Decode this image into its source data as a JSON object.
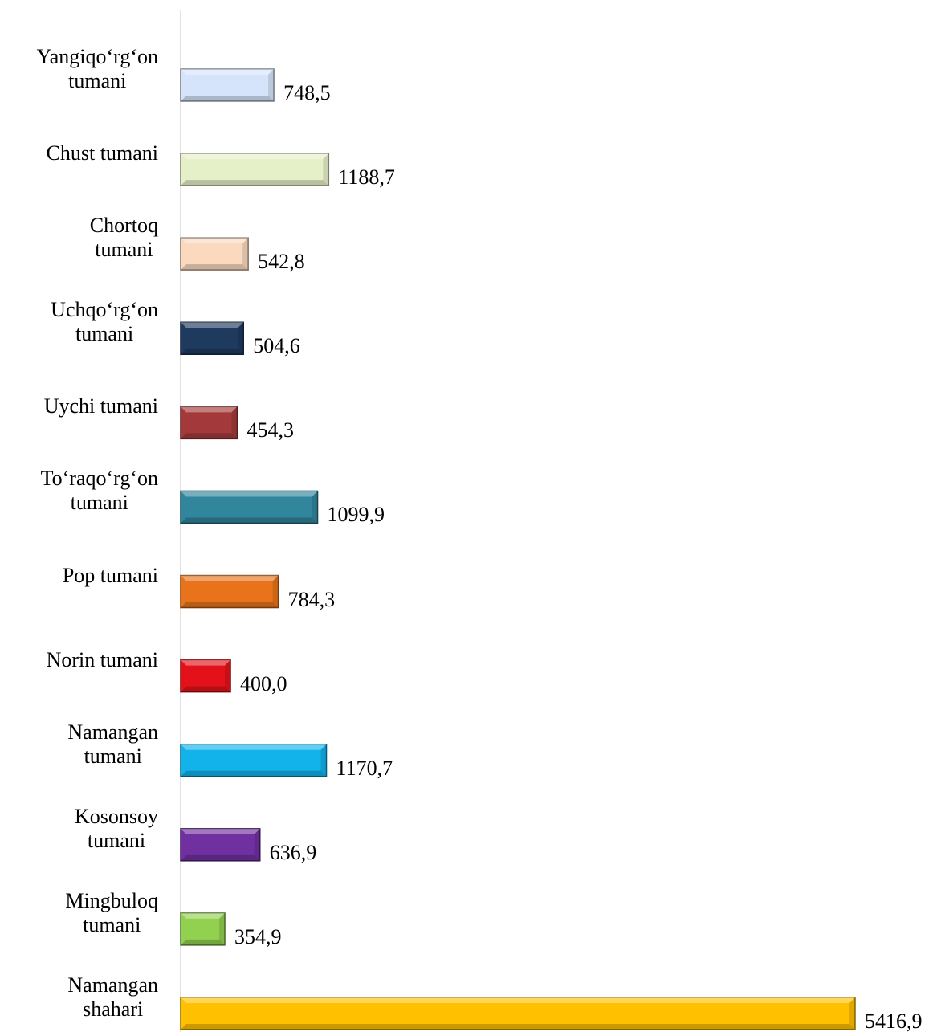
{
  "chart_data": {
    "type": "bar",
    "orientation": "horizontal",
    "categories": [
      "Yangiqo‘rg‘on\ntumani",
      "Chust tumani",
      "Chortoq\ntumani",
      "Uchqo‘rg‘on\ntumani",
      "Uychi tumani",
      "To‘raqo‘rg‘on\ntumani",
      "Pop tumani",
      "Norin tumani",
      "Namangan\ntumani",
      "Kosonsoy\ntumani",
      "Mingbuloq\ntumani",
      "Namangan\nshahari"
    ],
    "values": [
      748.5,
      1188.7,
      542.8,
      504.6,
      454.3,
      1099.9,
      784.3,
      400.0,
      1170.7,
      636.9,
      354.9,
      5416.9
    ],
    "value_labels": [
      "748,5",
      "1188,7",
      "542,8",
      "504,6",
      "454,3",
      "1099,9",
      "784,3",
      "400,0",
      "1170,7",
      "636,9",
      "354,9",
      "5416,9"
    ],
    "colors": [
      "#d6e4fb",
      "#e6f0c8",
      "#fad9bf",
      "#1f3a5f",
      "#a3393a",
      "#31859c",
      "#e8731a",
      "#e3121a",
      "#12b2ea",
      "#7030a0",
      "#92d050",
      "#ffc000"
    ]
  }
}
